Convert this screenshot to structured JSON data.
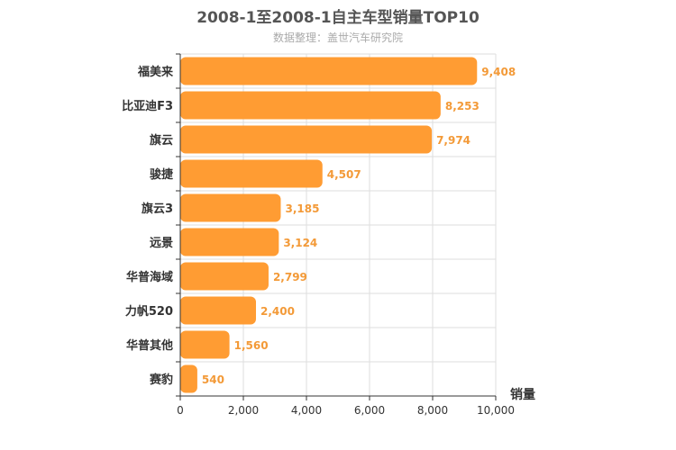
{
  "chart_data": {
    "type": "bar",
    "orientation": "horizontal",
    "title": "2008-1至2008-1自主车型销量TOP10",
    "subtitle": "数据整理：盖世汽车研究院",
    "categories": [
      "福美来",
      "比亚迪F3",
      "旗云",
      "骏捷",
      "旗云3",
      "远景",
      "华普海域",
      "力帆520",
      "华普其他",
      "赛豹"
    ],
    "values": [
      9408,
      8253,
      7974,
      4507,
      3185,
      3124,
      2799,
      2400,
      1560,
      540
    ],
    "value_labels": [
      "9,408",
      "8,253",
      "7,974",
      "4,507",
      "3,185",
      "3,124",
      "2,799",
      "2,400",
      "1,560",
      "540"
    ],
    "xlabel": "销量",
    "ylabel": "",
    "xlim": [
      0,
      10000
    ],
    "ticks": [
      0,
      2000,
      4000,
      6000,
      8000,
      10000
    ],
    "tick_labels": [
      "0",
      "2,000",
      "4,000",
      "6,000",
      "8,000",
      "10,000"
    ],
    "grid": true,
    "colors": {
      "bar": "#ff9c33",
      "value_label": "#f39a38",
      "grid": "#dddddd",
      "axis": "#333333"
    }
  }
}
